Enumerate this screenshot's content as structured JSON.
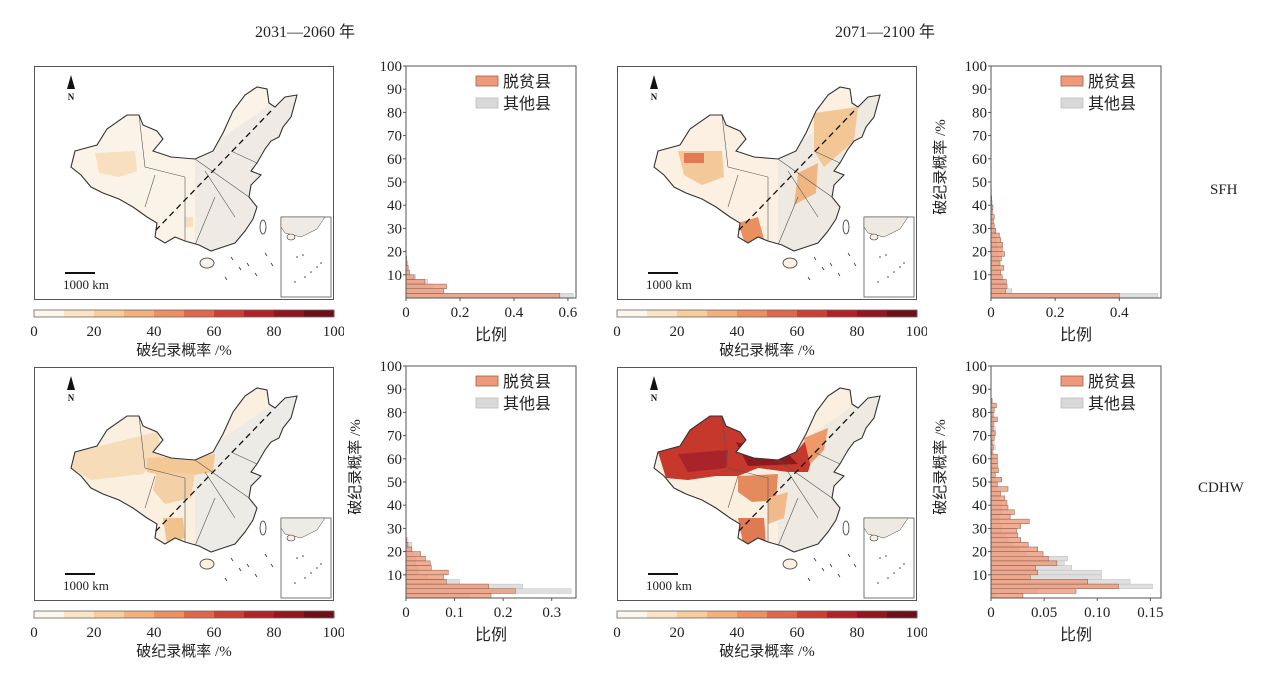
{
  "column_titles": [
    "2031—2060 年",
    "2071—2100 年"
  ],
  "row_labels": [
    "SFH",
    "CDHW"
  ],
  "map": {
    "north_label": "N",
    "scale_label": "1000 km"
  },
  "colorbar": {
    "label": "破纪录概率 /%",
    "ticks": [
      "0",
      "20",
      "40",
      "60",
      "80",
      "100"
    ],
    "colors": [
      "#fdf6ec",
      "#fbe3c4",
      "#f8cc9b",
      "#f4b07c",
      "#ee8f62",
      "#e0674b",
      "#cc3f33",
      "#b32025",
      "#931520",
      "#6e0f17"
    ]
  },
  "colors": {
    "poverty": "#ee9a7a",
    "other": "#d9d9d9",
    "map_base": "#fbf1e4",
    "map_east": "#efece6",
    "border": "#333333"
  },
  "chart_data": [
    {
      "type": "bar",
      "orientation": "horizontal",
      "period": "2031—2060 年",
      "hazard": "SFH",
      "xlabel": "比例",
      "ylabel": "破纪录概率 /%",
      "xlim": [
        0,
        0.63
      ],
      "xticks": [
        "0",
        "0.2",
        "0.4",
        "0.6"
      ],
      "xtick_values": [
        0,
        0.2,
        0.4,
        0.6
      ],
      "ylim": [
        0,
        100
      ],
      "yticks": [
        "10",
        "20",
        "30",
        "40",
        "50",
        "60",
        "70",
        "80",
        "90",
        "100"
      ],
      "bin_width": 2,
      "legend": [
        "脱贫县",
        "其他县"
      ],
      "legend_position": "top-right",
      "show_ylabel": false,
      "series": [
        {
          "name": "脱贫县",
          "values": [
            0.57,
            0.14,
            0.15,
            0.07,
            0.03,
            0.012,
            0.008,
            0.004,
            0.002,
            0.001
          ]
        },
        {
          "name": "其他县",
          "values": [
            0.62,
            0.13,
            0.1,
            0.08,
            0.035,
            0.013,
            0.008,
            0.004,
            0.002,
            0.001
          ]
        }
      ]
    },
    {
      "type": "bar",
      "orientation": "horizontal",
      "period": "2071—2100 年",
      "hazard": "SFH",
      "xlabel": "比例",
      "ylabel": "破纪录概率 /%",
      "xlim": [
        0,
        0.53
      ],
      "xticks": [
        "0",
        "0.2",
        "0.4"
      ],
      "xtick_values": [
        0,
        0.2,
        0.4
      ],
      "ylim": [
        0,
        100
      ],
      "yticks": [
        "10",
        "20",
        "30",
        "40",
        "50",
        "60",
        "70",
        "80",
        "90",
        "100"
      ],
      "bin_width": 2,
      "legend": [
        "脱贫县",
        "其他县"
      ],
      "legend_position": "top-right",
      "show_ylabel": true,
      "series": [
        {
          "name": "脱贫县",
          "values": [
            0.4,
            0.045,
            0.05,
            0.048,
            0.035,
            0.03,
            0.04,
            0.028,
            0.032,
            0.042,
            0.035,
            0.036,
            0.03,
            0.026,
            0.015,
            0.01,
            0.007,
            0.01,
            0.004,
            0.006,
            0.003,
            0.002,
            0.001,
            0.001
          ]
        },
        {
          "name": "其他县",
          "values": [
            0.52,
            0.065,
            0.045,
            0.04,
            0.03,
            0.025,
            0.025,
            0.022,
            0.022,
            0.022,
            0.02,
            0.018,
            0.015,
            0.012,
            0.014,
            0.008,
            0.005,
            0.003,
            0.002,
            0.002,
            0.002,
            0.002,
            0.001,
            0.001
          ]
        }
      ]
    },
    {
      "type": "bar",
      "orientation": "horizontal",
      "period": "2031—2060 年",
      "hazard": "CDHW",
      "xlabel": "比例",
      "ylabel": "破纪录概率 /%",
      "xlim": [
        0,
        0.35
      ],
      "xticks": [
        "0",
        "0.1",
        "0.2",
        "0.3"
      ],
      "xtick_values": [
        0,
        0.1,
        0.2,
        0.3
      ],
      "ylim": [
        0,
        100
      ],
      "yticks": [
        "10",
        "20",
        "30",
        "40",
        "50",
        "60",
        "70",
        "80",
        "90",
        "100"
      ],
      "bin_width": 2,
      "legend": [
        "脱贫县",
        "其他县"
      ],
      "legend_position": "top-right",
      "show_ylabel": true,
      "series": [
        {
          "name": "脱贫县",
          "values": [
            0.175,
            0.225,
            0.17,
            0.083,
            0.077,
            0.087,
            0.052,
            0.05,
            0.04,
            0.03,
            0.012,
            0.004,
            0.001
          ]
        },
        {
          "name": "其他县",
          "values": [
            0.13,
            0.34,
            0.24,
            0.11,
            0.045,
            0.025,
            0.025,
            0.02,
            0.02,
            0.015,
            0.012,
            0.012,
            0.004
          ]
        }
      ]
    },
    {
      "type": "bar",
      "orientation": "horizontal",
      "period": "2071—2100 年",
      "hazard": "CDHW",
      "xlabel": "比例",
      "ylabel": "破纪录概率 /%",
      "xlim": [
        0,
        0.16
      ],
      "xticks": [
        "0",
        "0.05",
        "0.10",
        "0.15"
      ],
      "xtick_values": [
        0,
        0.05,
        0.1,
        0.15
      ],
      "ylim": [
        0,
        100
      ],
      "yticks": [
        "10",
        "20",
        "30",
        "40",
        "50",
        "60",
        "70",
        "80",
        "90",
        "100"
      ],
      "bin_width": 2,
      "legend": [
        "脱贫县",
        "其他县"
      ],
      "legend_position": "top-right",
      "show_ylabel": true,
      "series": [
        {
          "name": "脱贫县",
          "values": [
            0.03,
            0.08,
            0.12,
            0.091,
            0.037,
            0.044,
            0.042,
            0.062,
            0.054,
            0.049,
            0.044,
            0.035,
            0.028,
            0.025,
            0.024,
            0.028,
            0.036,
            0.018,
            0.022,
            0.016,
            0.015,
            0.013,
            0.009,
            0.016,
            0.006,
            0.01,
            0.004,
            0.007,
            0.006,
            0.006,
            0.006,
            0.001,
            0.002,
            0.001,
            0.003,
            0.004,
            0.002,
            0.002,
            0.006,
            0.002,
            0.003,
            0.005,
            0.001
          ]
        },
        {
          "name": "其他县",
          "values": [
            0.004,
            0.043,
            0.152,
            0.131,
            0.104,
            0.104,
            0.076,
            0.069,
            0.072,
            0.033,
            0.026,
            0.02,
            0.016,
            0.014,
            0.01,
            0.01,
            0.008,
            0.008,
            0.01,
            0.01,
            0.01,
            0.008,
            0.008,
            0.006,
            0.005,
            0.004,
            0.004,
            0.003,
            0.003,
            0.002,
            0.002,
            0.002,
            0.004,
            0.003,
            0.002,
            0.003,
            0.004,
            0.003,
            0.002,
            0.002,
            0.002,
            0.001,
            0.001
          ]
        }
      ]
    }
  ]
}
